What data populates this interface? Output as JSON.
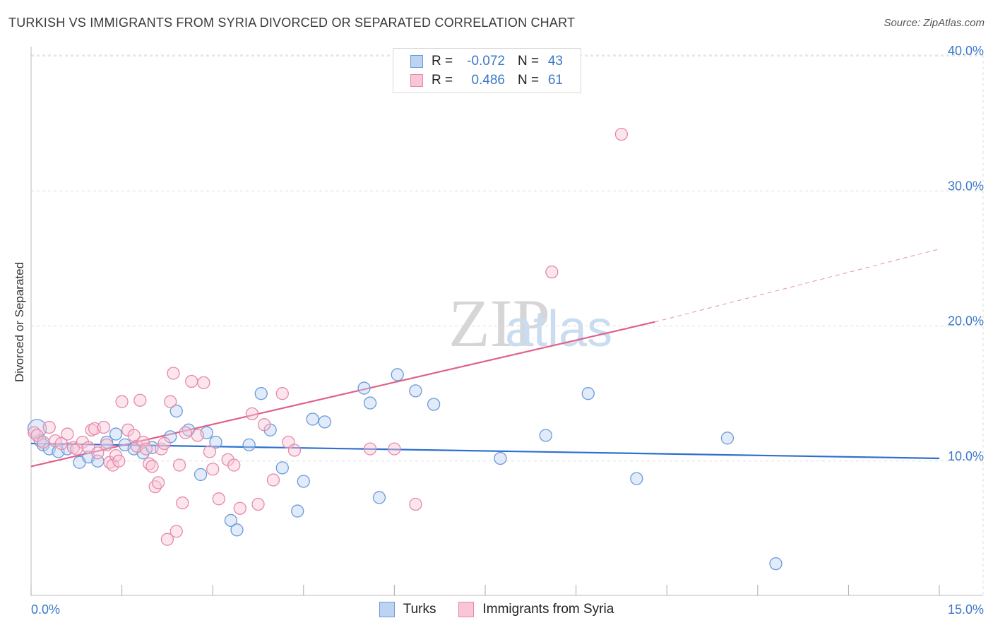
{
  "header": {
    "title": "TURKISH VS IMMIGRANTS FROM SYRIA DIVORCED OR SEPARATED CORRELATION CHART",
    "source": "Source: ZipAtlas.com"
  },
  "watermark": {
    "zip": "ZIP",
    "atlas": "atlas"
  },
  "legend_box": {
    "rows": [
      {
        "r_label": "R =",
        "r_value": "-0.072",
        "n_label": "N =",
        "n_value": "43",
        "color": "#6a9bd8",
        "fill": "#bcd3f2"
      },
      {
        "r_label": "R =",
        "r_value": "0.486",
        "n_label": "N =",
        "n_value": "61",
        "color": "#e58aa9",
        "fill": "#f8c6d6"
      }
    ]
  },
  "bottom_legend": [
    {
      "label": "Turks",
      "color": "#6a9bd8",
      "fill": "#bcd3f2"
    },
    {
      "label": "Immigrants from Syria",
      "color": "#e58aa9",
      "fill": "#f8c6d6"
    }
  ],
  "chart_data": {
    "type": "scatter",
    "title": "TURKISH VS IMMIGRANTS FROM SYRIA DIVORCED OR SEPARATED CORRELATION CHART",
    "xlabel": "",
    "ylabel": "Divorced or Separated",
    "xlim": [
      0,
      15
    ],
    "ylim": [
      0,
      42
    ],
    "x_tick_labels": [
      "0.0%",
      "15.0%"
    ],
    "y_ticks": [
      10,
      20,
      30,
      40
    ],
    "y_tick_labels": [
      "10.0%",
      "20.0%",
      "30.0%",
      "40.0%"
    ],
    "grid": true,
    "series": [
      {
        "name": "Turks",
        "color": "#6a9bd8",
        "fill": "#bcd3f2",
        "line_color": "#2e6fd0",
        "trend": {
          "x0": 0,
          "y0": 11.3,
          "x1": 15,
          "y1": 10.2
        },
        "points": [
          [
            0.1,
            12.4
          ],
          [
            0.15,
            11.5
          ],
          [
            0.2,
            11.2
          ],
          [
            0.3,
            10.9
          ],
          [
            0.45,
            10.7
          ],
          [
            0.6,
            10.9
          ],
          [
            0.8,
            9.9
          ],
          [
            0.95,
            10.3
          ],
          [
            1.1,
            10.0
          ],
          [
            1.25,
            11.4
          ],
          [
            1.4,
            12.0
          ],
          [
            1.55,
            11.2
          ],
          [
            1.7,
            10.9
          ],
          [
            1.85,
            10.6
          ],
          [
            2.0,
            11.0
          ],
          [
            2.3,
            11.8
          ],
          [
            2.4,
            13.7
          ],
          [
            2.6,
            12.3
          ],
          [
            2.8,
            9.0
          ],
          [
            2.9,
            12.1
          ],
          [
            3.05,
            11.4
          ],
          [
            3.3,
            5.6
          ],
          [
            3.4,
            4.9
          ],
          [
            3.6,
            11.2
          ],
          [
            3.8,
            15.0
          ],
          [
            3.95,
            12.3
          ],
          [
            4.15,
            9.5
          ],
          [
            4.4,
            6.3
          ],
          [
            4.5,
            8.5
          ],
          [
            4.65,
            13.1
          ],
          [
            4.85,
            12.9
          ],
          [
            5.5,
            15.4
          ],
          [
            5.6,
            14.3
          ],
          [
            5.75,
            7.3
          ],
          [
            6.05,
            16.4
          ],
          [
            6.35,
            15.2
          ],
          [
            6.65,
            14.2
          ],
          [
            7.75,
            10.2
          ],
          [
            8.5,
            11.9
          ],
          [
            9.2,
            15.0
          ],
          [
            10.0,
            8.7
          ],
          [
            11.5,
            11.7
          ],
          [
            12.3,
            2.4
          ]
        ]
      },
      {
        "name": "Immigrants from Syria",
        "color": "#e58aa9",
        "fill": "#f8c6d6",
        "line_color": "#e0608a",
        "trend": {
          "x0": 0,
          "y0": 9.6,
          "x1": 10.3,
          "y1": 20.3,
          "x_ext": 15,
          "y_ext": 25.7
        },
        "points": [
          [
            0.05,
            12.1
          ],
          [
            0.1,
            11.9
          ],
          [
            0.2,
            11.4
          ],
          [
            0.3,
            12.5
          ],
          [
            0.4,
            11.5
          ],
          [
            0.5,
            11.3
          ],
          [
            0.6,
            12.0
          ],
          [
            0.7,
            11.0
          ],
          [
            0.75,
            10.9
          ],
          [
            0.85,
            11.4
          ],
          [
            0.95,
            11.0
          ],
          [
            1.0,
            12.3
          ],
          [
            1.05,
            12.4
          ],
          [
            1.1,
            10.6
          ],
          [
            1.2,
            12.5
          ],
          [
            1.25,
            11.2
          ],
          [
            1.3,
            9.9
          ],
          [
            1.35,
            9.7
          ],
          [
            1.4,
            10.4
          ],
          [
            1.45,
            10.0
          ],
          [
            1.5,
            14.4
          ],
          [
            1.6,
            12.3
          ],
          [
            1.7,
            11.9
          ],
          [
            1.75,
            11.1
          ],
          [
            1.8,
            14.5
          ],
          [
            1.85,
            11.4
          ],
          [
            1.9,
            10.9
          ],
          [
            1.95,
            9.8
          ],
          [
            2.0,
            9.6
          ],
          [
            2.05,
            8.1
          ],
          [
            2.1,
            8.4
          ],
          [
            2.15,
            10.9
          ],
          [
            2.2,
            11.3
          ],
          [
            2.25,
            4.2
          ],
          [
            2.3,
            14.4
          ],
          [
            2.35,
            16.5
          ],
          [
            2.4,
            4.8
          ],
          [
            2.45,
            9.7
          ],
          [
            2.5,
            6.9
          ],
          [
            2.55,
            12.1
          ],
          [
            2.65,
            15.9
          ],
          [
            2.75,
            11.9
          ],
          [
            2.85,
            15.8
          ],
          [
            2.95,
            10.7
          ],
          [
            3.0,
            9.4
          ],
          [
            3.1,
            7.2
          ],
          [
            3.25,
            10.1
          ],
          [
            3.35,
            9.7
          ],
          [
            3.45,
            6.5
          ],
          [
            3.65,
            13.5
          ],
          [
            3.75,
            6.8
          ],
          [
            3.85,
            12.7
          ],
          [
            4.0,
            8.6
          ],
          [
            4.15,
            15.0
          ],
          [
            4.25,
            11.4
          ],
          [
            4.35,
            10.8
          ],
          [
            5.6,
            10.9
          ],
          [
            6.0,
            10.9
          ],
          [
            6.35,
            6.8
          ],
          [
            8.6,
            24.0
          ],
          [
            9.75,
            34.2
          ]
        ]
      }
    ]
  }
}
